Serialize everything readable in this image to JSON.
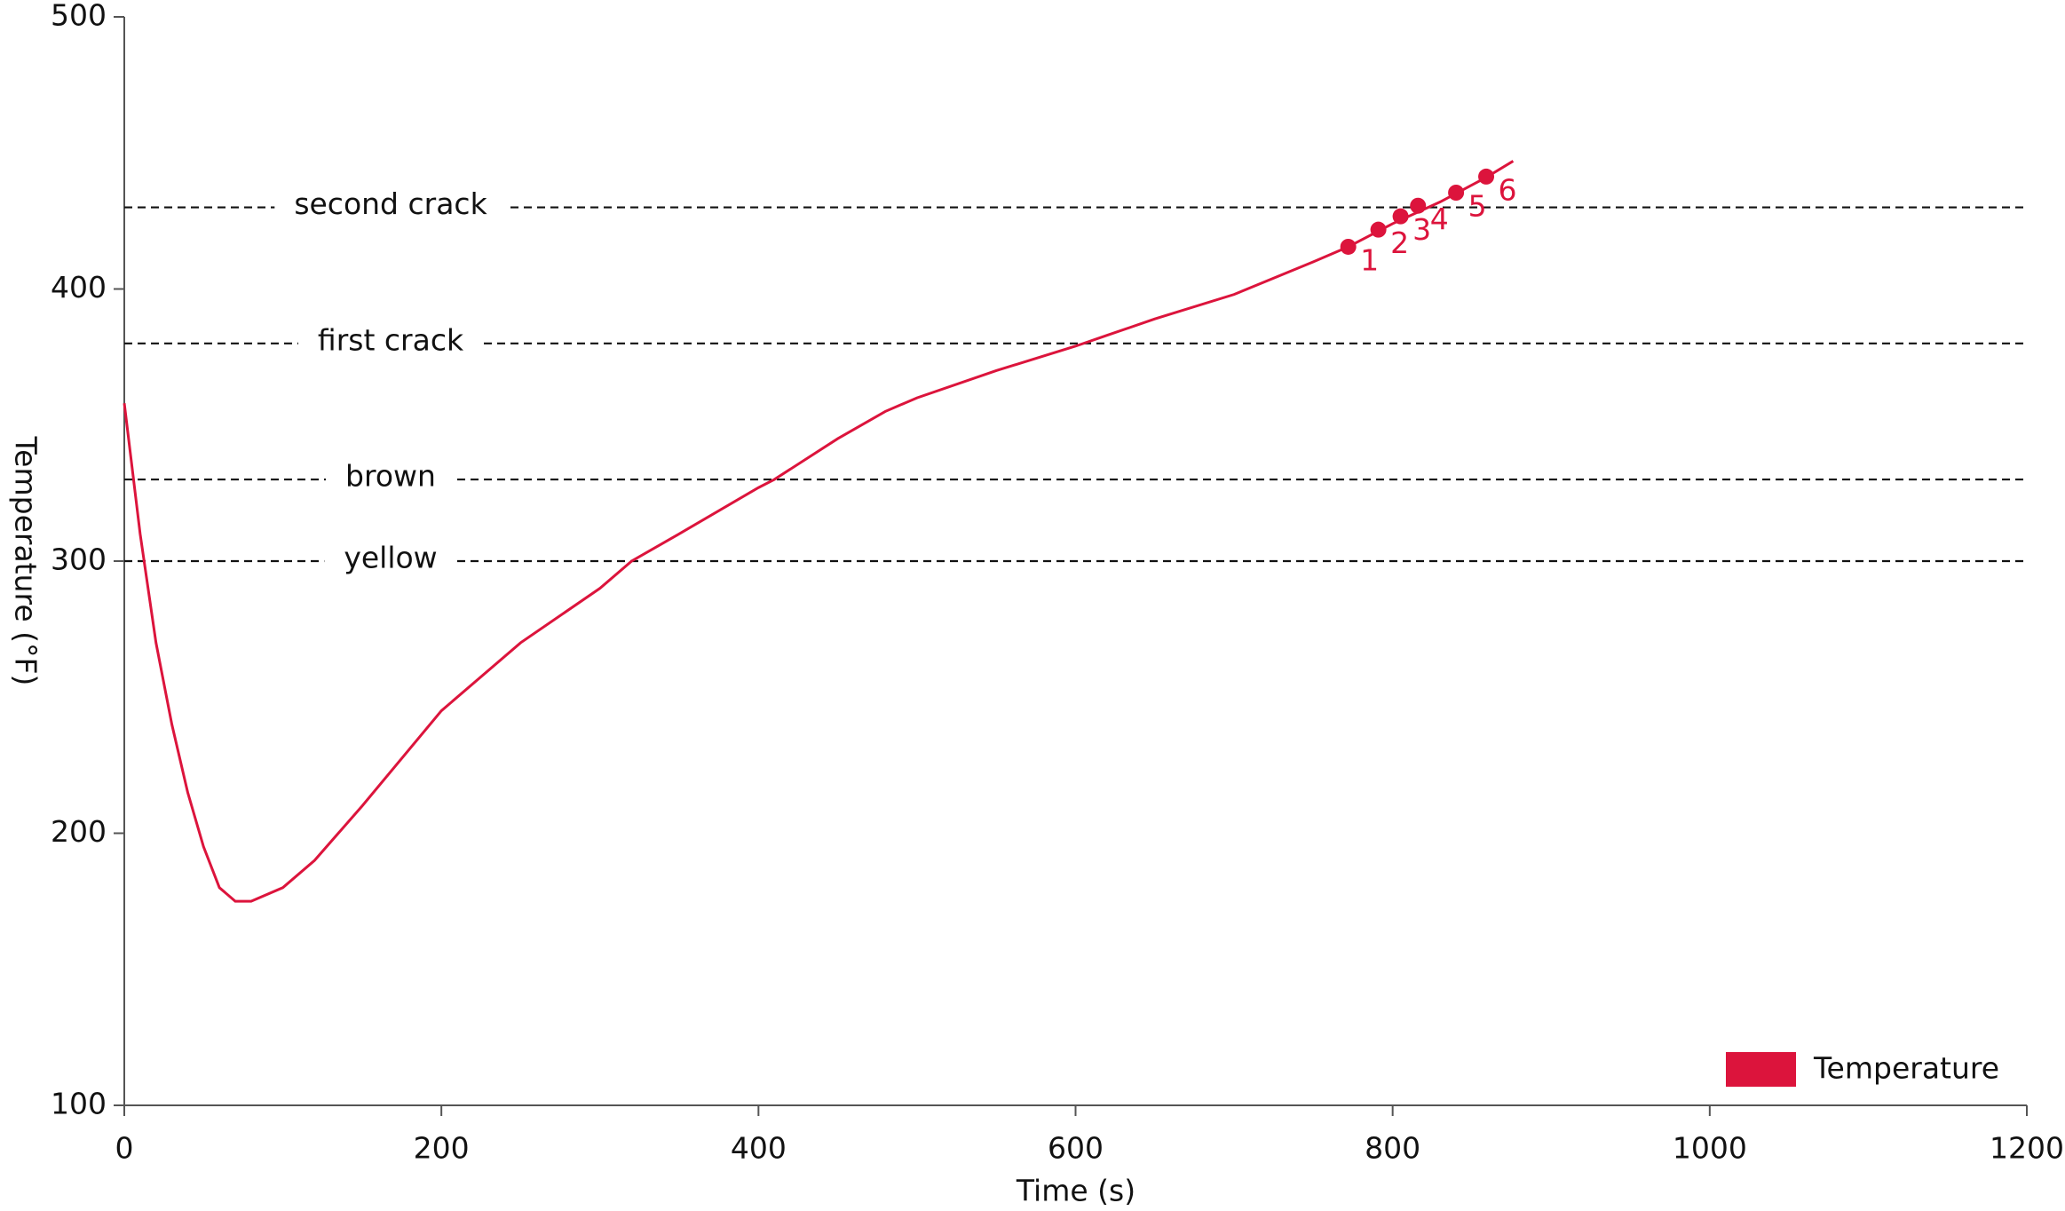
{
  "chart_data": {
    "type": "line",
    "xlabel": "Time (s)",
    "ylabel": "Temperature (°F)",
    "xlim": [
      0,
      1200
    ],
    "xticks": [
      0,
      200,
      400,
      600,
      800,
      1000,
      1200
    ],
    "ylim": [
      100,
      500
    ],
    "yticks": [
      100,
      200,
      300,
      400,
      500
    ],
    "series": [
      {
        "name": "Temperature",
        "color": "#dc143c",
        "x": [
          0,
          10,
          20,
          30,
          40,
          50,
          60,
          70,
          80,
          100,
          120,
          150,
          200,
          250,
          300,
          320,
          350,
          400,
          410,
          450,
          480,
          500,
          550,
          600,
          620,
          650,
          700,
          750,
          772,
          800,
          830,
          859,
          876
        ],
        "values": [
          358,
          310,
          270,
          240,
          215,
          195,
          180,
          175,
          175,
          180,
          190,
          210,
          245,
          270,
          290,
          300,
          310,
          327,
          330,
          345,
          355,
          360,
          370,
          379,
          383,
          389,
          398,
          410,
          415.5,
          424,
          432,
          441,
          447
        ]
      }
    ],
    "markers": {
      "labels": [
        "1",
        "2",
        "3",
        "4",
        "5",
        "6"
      ],
      "x": [
        772,
        791,
        805,
        816,
        840,
        859
      ],
      "values": [
        415.5,
        421.8,
        426.7,
        430.6,
        435.4,
        441.3
      ]
    },
    "reference_lines": [
      {
        "label": "second crack",
        "value": 430
      },
      {
        "label": "first crack",
        "value": 380
      },
      {
        "label": "brown",
        "value": 330
      },
      {
        "label": "yellow",
        "value": 300
      }
    ],
    "legend": "lower right"
  }
}
